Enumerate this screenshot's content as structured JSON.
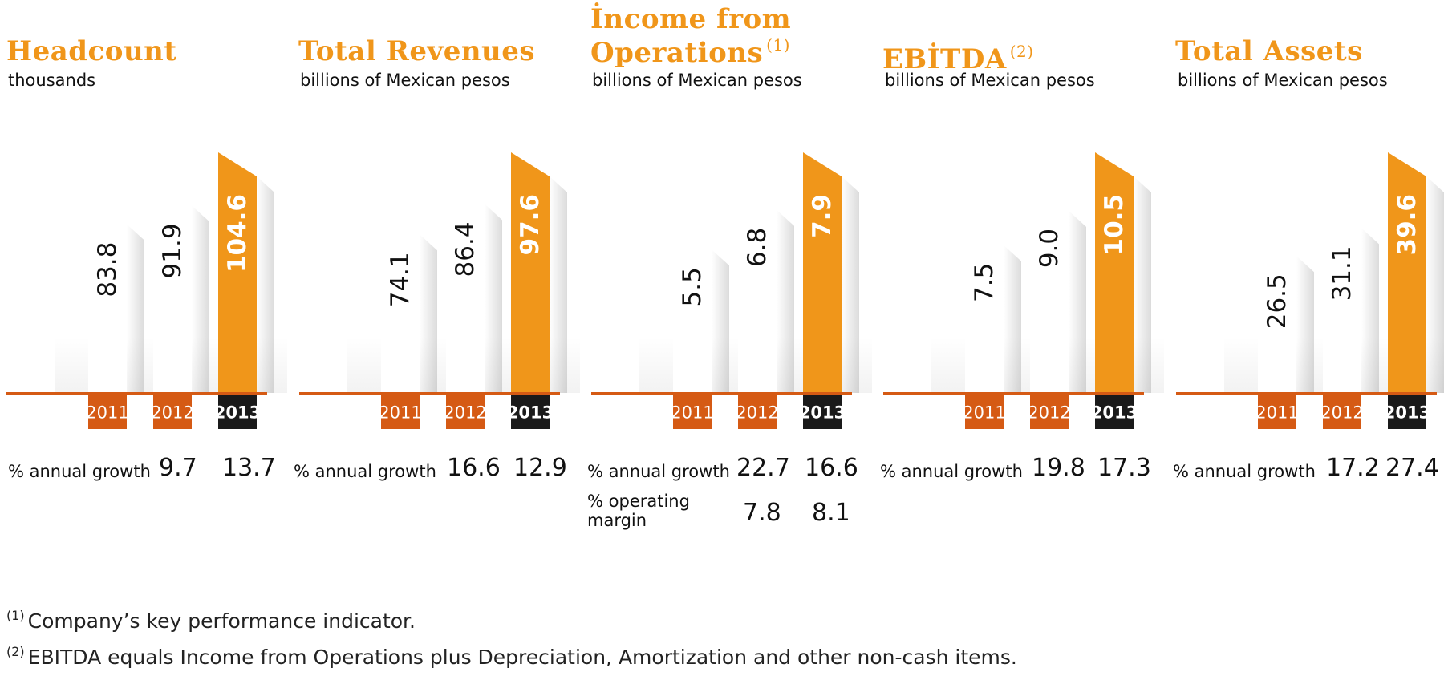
{
  "chart_data": [
    {
      "type": "bar",
      "title": "Headcount",
      "subtitle": "thousands",
      "categories": [
        "2011",
        "2012",
        "2013"
      ],
      "values": [
        83.8,
        91.9,
        104.6
      ],
      "value_labels": [
        "83.8",
        "91.9",
        "104.6"
      ],
      "growth_label": "% annual growth",
      "growth_values": [
        "9.7",
        "13.7"
      ]
    },
    {
      "type": "bar",
      "title": "Total Revenues",
      "subtitle": "billions of Mexican pesos",
      "categories": [
        "2011",
        "2012",
        "2013"
      ],
      "values": [
        74.1,
        86.4,
        97.6
      ],
      "value_labels": [
        "74.1",
        "86.4",
        "97.6"
      ],
      "growth_label": "% annual growth",
      "growth_values": [
        "16.6",
        "12.9"
      ]
    },
    {
      "type": "bar",
      "title_line1": "İncome from",
      "title_line2": "Operations",
      "title_note": "(1)",
      "subtitle": "billions of Mexican pesos",
      "categories": [
        "2011",
        "2012",
        "2013"
      ],
      "values": [
        5.5,
        6.8,
        7.9
      ],
      "value_labels": [
        "5.5",
        "6.8",
        "7.9"
      ],
      "growth_label": "% annual growth",
      "growth_values": [
        "22.7",
        "16.6"
      ],
      "margin_label_line1": "% operating",
      "margin_label_line2": "margin",
      "margin_values": [
        "7.8",
        "8.1"
      ]
    },
    {
      "type": "bar",
      "title": "EBİTDA",
      "title_note": "(2)",
      "subtitle": "billions of Mexican pesos",
      "categories": [
        "2011",
        "2012",
        "2013"
      ],
      "values": [
        7.5,
        9.0,
        10.5
      ],
      "value_labels": [
        "7.5",
        "9.0",
        "10.5"
      ],
      "growth_label": "% annual growth",
      "growth_values": [
        "19.8",
        "17.3"
      ]
    },
    {
      "type": "bar",
      "title": "Total Assets",
      "subtitle": "billions of Mexican pesos",
      "categories": [
        "2011",
        "2012",
        "2013"
      ],
      "values": [
        26.5,
        31.1,
        39.6
      ],
      "value_labels": [
        "26.5",
        "31.1",
        "39.6"
      ],
      "growth_label": "% annual growth",
      "growth_values": [
        "17.2",
        "27.4"
      ]
    }
  ],
  "footnotes": [
    {
      "mark": "(1)",
      "text": "Company’s key performance indicator."
    },
    {
      "mark": "(2)",
      "text": "EBITDA equals Income from Operations plus Depreciation, Amortization and other non-cash items."
    }
  ],
  "colors": {
    "accent": "#f0961a",
    "year_tag_past": "#d55a14",
    "year_tag_current": "#1a1a1a",
    "baseline": "#d55a14",
    "bar_past": "#ffffff",
    "bar_current": "#f0961a"
  }
}
